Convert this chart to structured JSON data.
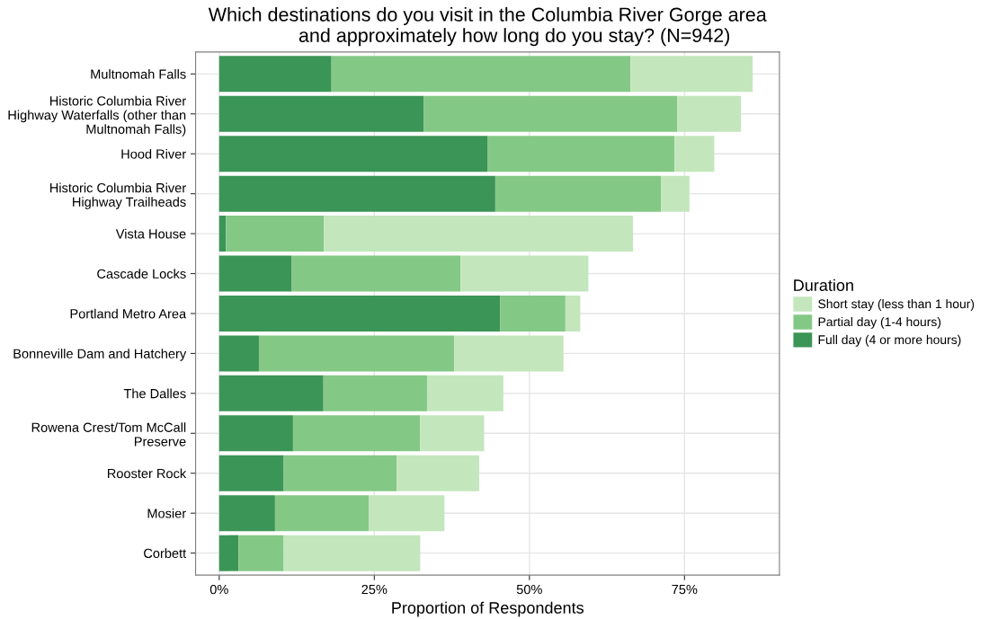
{
  "chart_data": {
    "type": "bar",
    "orientation": "horizontal",
    "stacked": true,
    "title": "Which destinations do you visit in the Columbia River Gorge area\n          and approximately how long do you stay? (N=942)",
    "xlabel": "Proportion of Respondents",
    "legend_title": "Duration",
    "categories": [
      "Multnomah Falls",
      "Historic Columbia River\nHighway Waterfalls (other than\nMultnomah Falls)",
      "Hood River",
      "Historic Columbia River\nHighway Trailheads",
      "Vista House",
      "Cascade Locks",
      "Portland Metro Area",
      "Bonneville Dam and Hatchery",
      "The Dalles",
      "Rowena Crest/Tom McCall\nPreserve",
      "Rooster Rock",
      "Mosier",
      "Corbett"
    ],
    "series": [
      {
        "name": "Full day (4 or more hours)",
        "color": "#3b9556",
        "values": [
          0.181,
          0.33,
          0.433,
          0.445,
          0.011,
          0.117,
          0.453,
          0.064,
          0.168,
          0.119,
          0.104,
          0.09,
          0.031
        ]
      },
      {
        "name": "Partial day (1-4 hours)",
        "color": "#84c886",
        "values": [
          0.482,
          0.408,
          0.301,
          0.267,
          0.158,
          0.272,
          0.105,
          0.315,
          0.167,
          0.205,
          0.182,
          0.151,
          0.073
        ]
      },
      {
        "name": "Short stay (less than 1 hour)",
        "color": "#c3e6bc",
        "values": [
          0.197,
          0.103,
          0.064,
          0.046,
          0.498,
          0.206,
          0.024,
          0.176,
          0.123,
          0.103,
          0.133,
          0.122,
          0.22
        ]
      }
    ],
    "xlim": [
      -0.038,
      0.903
    ],
    "xticks": [
      {
        "value": 0,
        "label": "0%"
      },
      {
        "value": 0.25,
        "label": "25%"
      },
      {
        "value": 0.5,
        "label": "50%"
      },
      {
        "value": 0.75,
        "label": "75%"
      }
    ],
    "grid": true,
    "legend": "right"
  }
}
